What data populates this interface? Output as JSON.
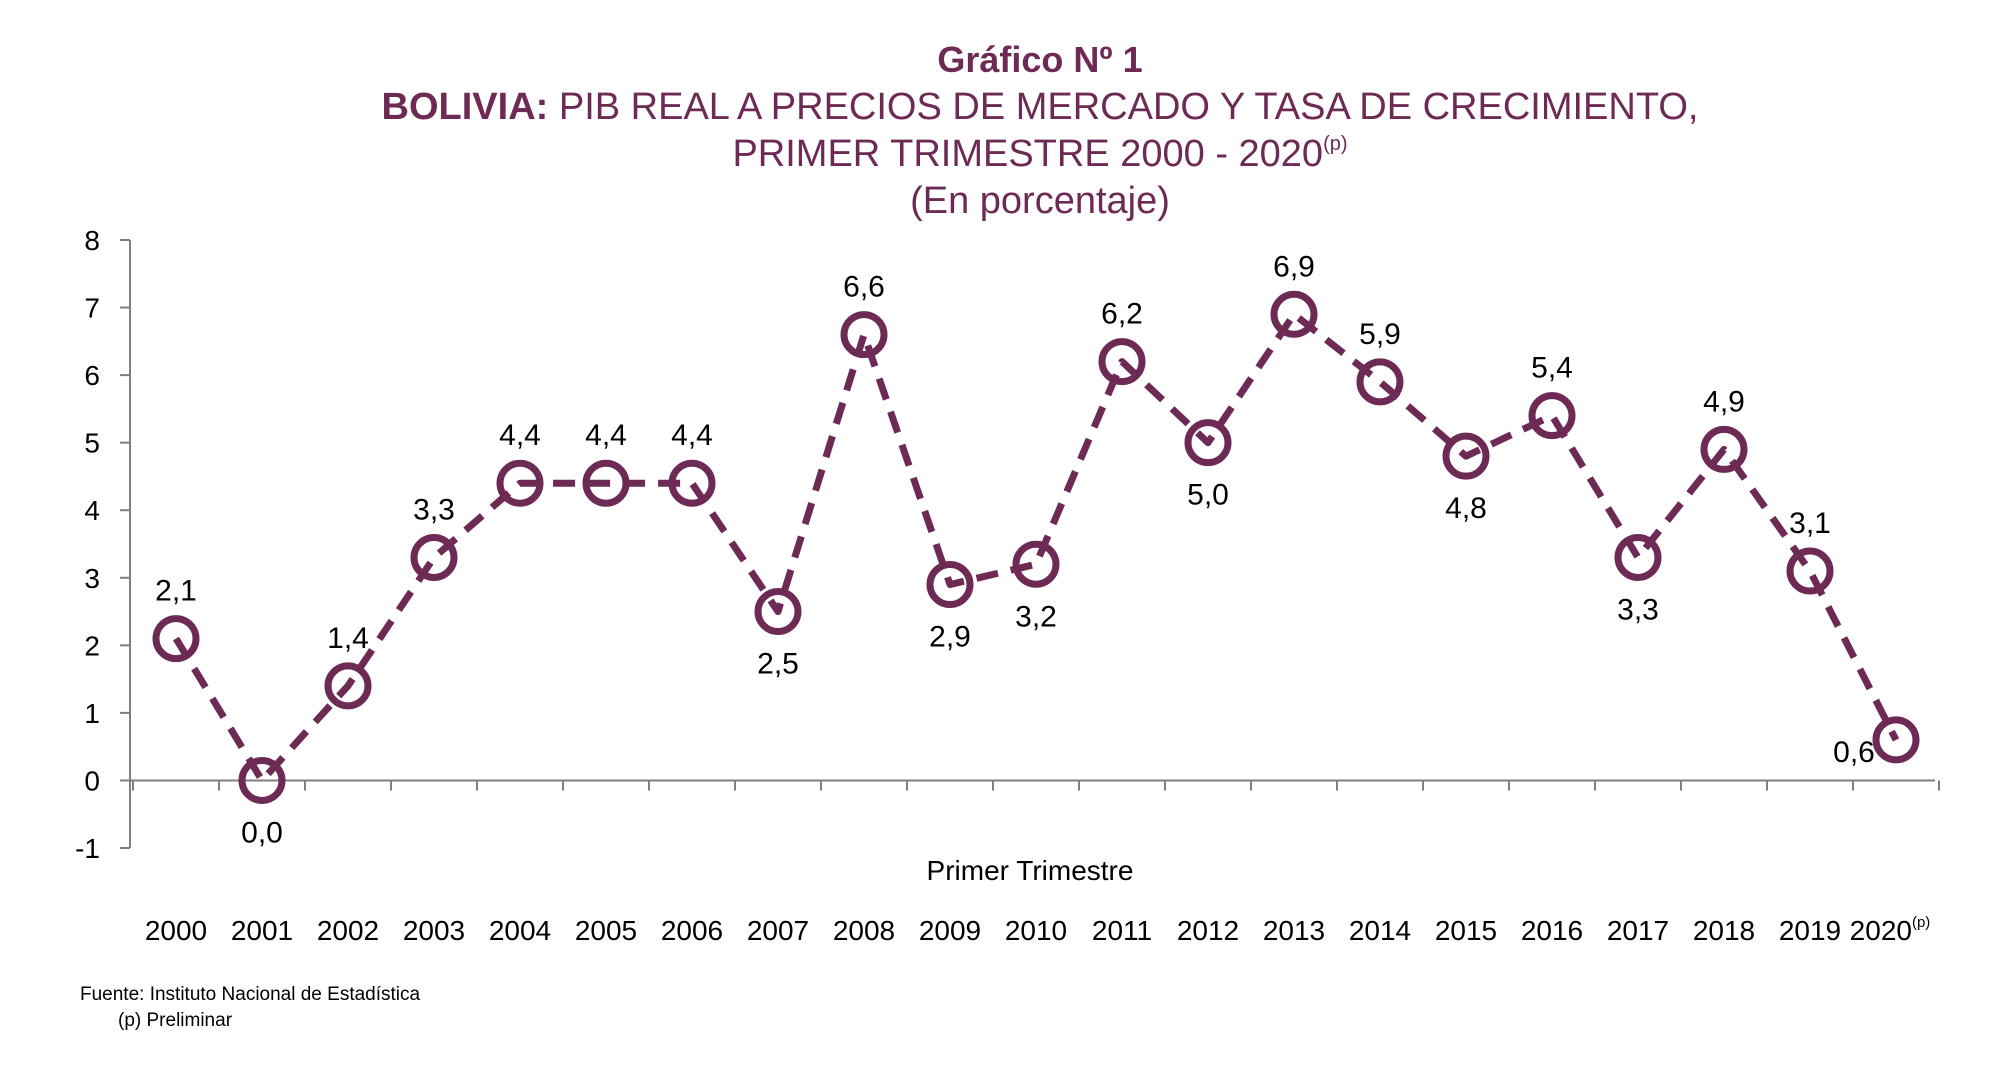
{
  "title": {
    "line1": "Gráfico Nº 1",
    "line2_bold": "BOLIVIA:",
    "line2_rest": " PIB REAL A PRECIOS DE MERCADO Y TASA DE CRECIMIENTO,",
    "line3": "PRIMER TRIMESTRE 2000 - 2020",
    "line3_sup": "(p)",
    "line4": "(En porcentaje)"
  },
  "source": {
    "line1": "Fuente: Instituto Nacional de Estadística",
    "line2": "(p) Preliminar"
  },
  "colors": {
    "series": "#6d2a55",
    "title": "#6d2a55",
    "axis": "#7f7f7f"
  },
  "chart_data": {
    "type": "line",
    "xlabel": "Primer Trimestre",
    "ylabel": "",
    "ylim": [
      -1,
      8
    ],
    "yticks": [
      "-1",
      "0",
      "1",
      "2",
      "3",
      "4",
      "5",
      "6",
      "7",
      "8"
    ],
    "grid": false,
    "line_style": "dashed",
    "marker": "open-circle",
    "categories": [
      "2000",
      "2001",
      "2002",
      "2003",
      "2004",
      "2005",
      "2006",
      "2007",
      "2008",
      "2009",
      "2010",
      "2011",
      "2012",
      "2013",
      "2014",
      "2015",
      "2016",
      "2017",
      "2018",
      "2019",
      "2020"
    ],
    "last_category_sup": "(p)",
    "values": [
      2.1,
      0.0,
      1.4,
      3.3,
      4.4,
      4.4,
      4.4,
      2.5,
      6.6,
      2.9,
      3.2,
      6.2,
      5.0,
      6.9,
      5.9,
      4.8,
      5.4,
      3.3,
      4.9,
      3.1,
      0.6
    ],
    "data_labels": [
      "2,1",
      "0,0",
      "1,4",
      "3,3",
      "4,4",
      "4,4",
      "4,4",
      "2,5",
      "6,6",
      "2,9",
      "3,2",
      "6,2",
      "5,0",
      "6,9",
      "5,9",
      "4,8",
      "5,4",
      "3,3",
      "4,9",
      "3,1",
      "0,6"
    ],
    "label_positions": [
      "above",
      "below",
      "above",
      "above",
      "above",
      "above",
      "above",
      "below",
      "above",
      "below",
      "below",
      "above",
      "below",
      "above",
      "above",
      "below",
      "above",
      "below",
      "above",
      "above",
      "left"
    ]
  }
}
